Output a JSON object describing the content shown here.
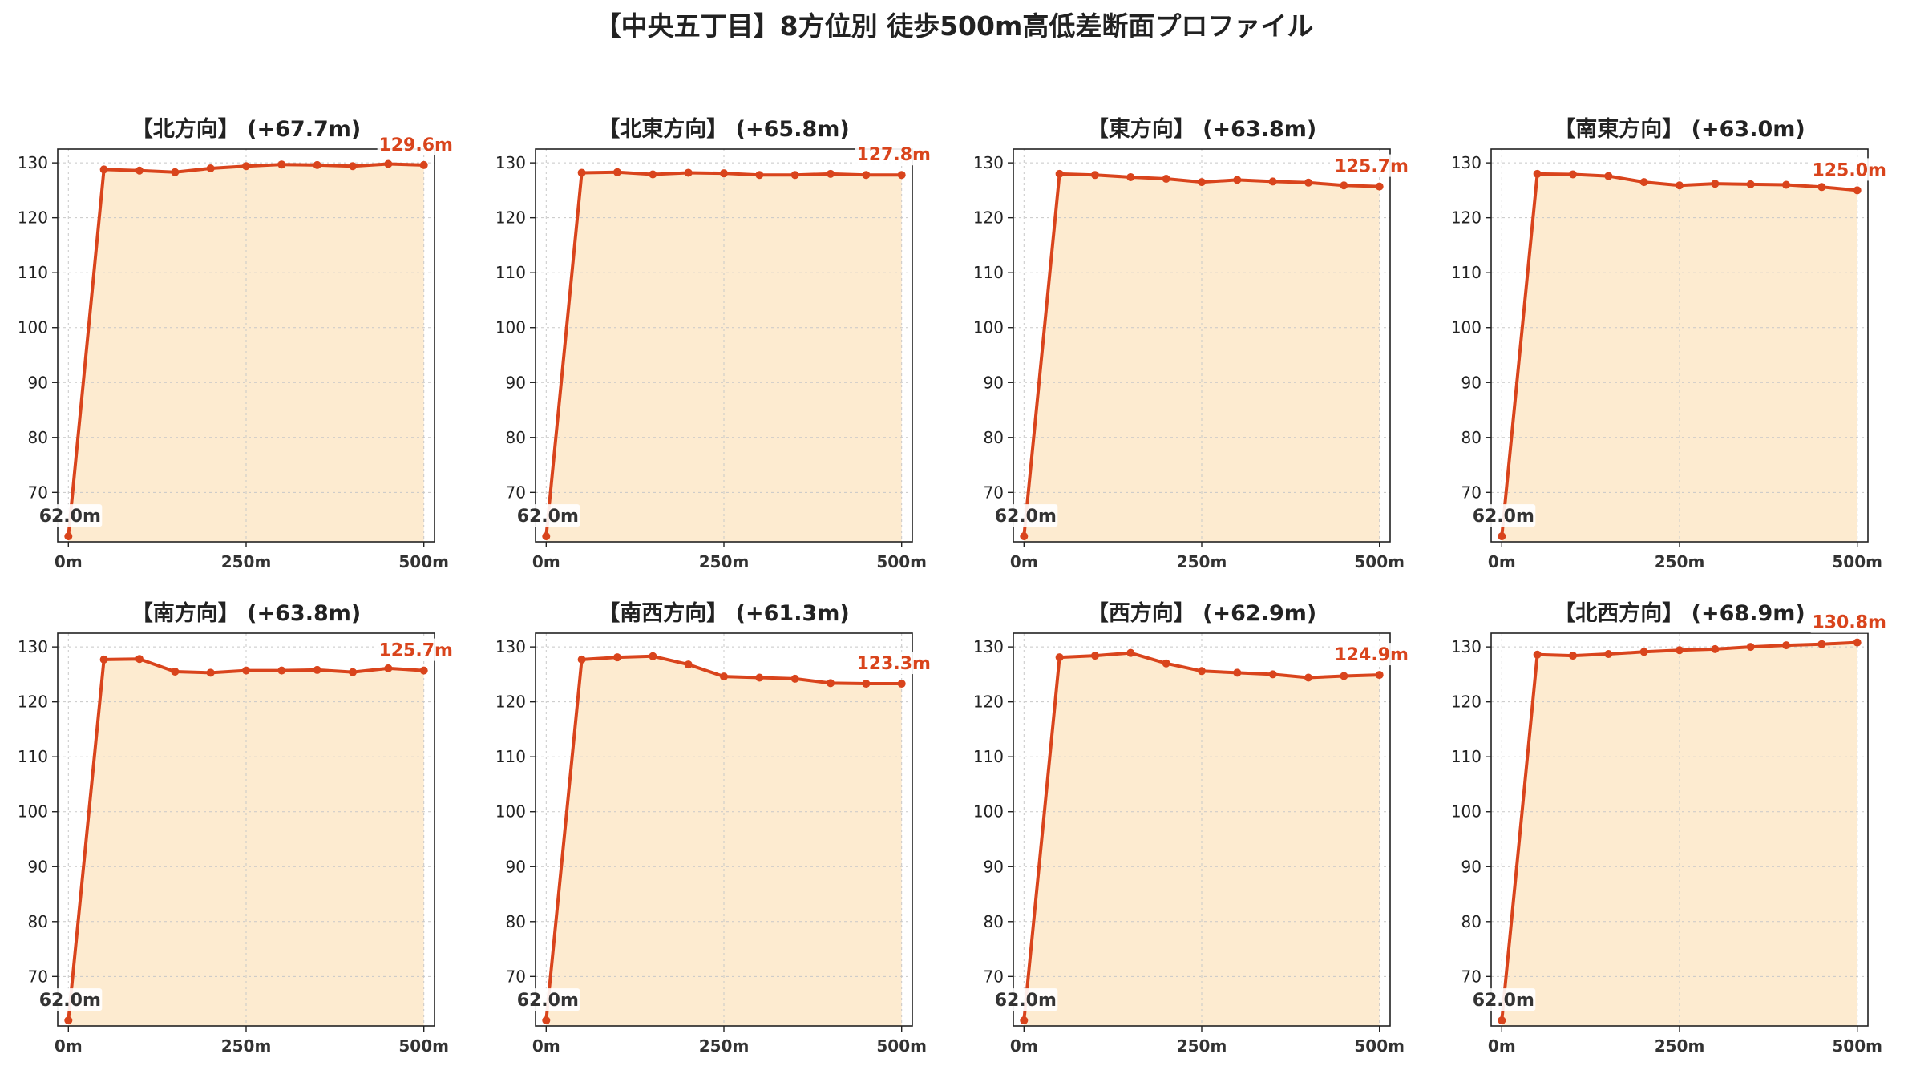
{
  "title": "【中央五丁目】8方位別 徒歩500m高低差断面プロファイル",
  "colors": {
    "line": "#d9441c",
    "fill": "#fdebd0",
    "grid": "#c8c8c8",
    "axis": "#222222"
  },
  "chart_data": [
    {
      "type": "area",
      "title": "【北方向】 (+67.7m)",
      "x": [
        0,
        50,
        100,
        150,
        200,
        250,
        300,
        350,
        400,
        450,
        500
      ],
      "y": [
        62.0,
        128.8,
        128.6,
        128.3,
        129.0,
        129.4,
        129.7,
        129.6,
        129.4,
        129.8,
        129.6
      ],
      "xticks": [
        {
          "value": 0,
          "label": "0m"
        },
        {
          "value": 250,
          "label": "250m"
        },
        {
          "value": 500,
          "label": "500m"
        }
      ],
      "yticks": [
        70,
        80,
        90,
        100,
        110,
        120,
        130
      ],
      "xlim": [
        -15,
        515
      ],
      "ylim": [
        61,
        132.5
      ],
      "start_label": "62.0m",
      "end_label": "129.6m",
      "grid": true
    },
    {
      "type": "area",
      "title": "【北東方向】 (+65.8m)",
      "x": [
        0,
        50,
        100,
        150,
        200,
        250,
        300,
        350,
        400,
        450,
        500
      ],
      "y": [
        62.0,
        128.2,
        128.3,
        127.9,
        128.2,
        128.1,
        127.8,
        127.8,
        128.0,
        127.8,
        127.8
      ],
      "xticks": [
        {
          "value": 0,
          "label": "0m"
        },
        {
          "value": 250,
          "label": "250m"
        },
        {
          "value": 500,
          "label": "500m"
        }
      ],
      "yticks": [
        70,
        80,
        90,
        100,
        110,
        120,
        130
      ],
      "xlim": [
        -15,
        515
      ],
      "ylim": [
        61,
        132.5
      ],
      "start_label": "62.0m",
      "end_label": "127.8m",
      "grid": true
    },
    {
      "type": "area",
      "title": "【東方向】 (+63.8m)",
      "x": [
        0,
        50,
        100,
        150,
        200,
        250,
        300,
        350,
        400,
        450,
        500
      ],
      "y": [
        62.0,
        128.0,
        127.8,
        127.4,
        127.1,
        126.5,
        126.9,
        126.6,
        126.4,
        125.9,
        125.7
      ],
      "xticks": [
        {
          "value": 0,
          "label": "0m"
        },
        {
          "value": 250,
          "label": "250m"
        },
        {
          "value": 500,
          "label": "500m"
        }
      ],
      "yticks": [
        70,
        80,
        90,
        100,
        110,
        120,
        130
      ],
      "xlim": [
        -15,
        515
      ],
      "ylim": [
        61,
        132.5
      ],
      "start_label": "62.0m",
      "end_label": "125.7m",
      "grid": true
    },
    {
      "type": "area",
      "title": "【南東方向】 (+63.0m)",
      "x": [
        0,
        50,
        100,
        150,
        200,
        250,
        300,
        350,
        400,
        450,
        500
      ],
      "y": [
        62.0,
        128.0,
        127.9,
        127.6,
        126.5,
        125.9,
        126.2,
        126.1,
        126.0,
        125.6,
        125.0
      ],
      "xticks": [
        {
          "value": 0,
          "label": "0m"
        },
        {
          "value": 250,
          "label": "250m"
        },
        {
          "value": 500,
          "label": "500m"
        }
      ],
      "yticks": [
        70,
        80,
        90,
        100,
        110,
        120,
        130
      ],
      "xlim": [
        -15,
        515
      ],
      "ylim": [
        61,
        132.5
      ],
      "start_label": "62.0m",
      "end_label": "125.0m",
      "grid": true
    },
    {
      "type": "area",
      "title": "【南方向】 (+63.8m)",
      "x": [
        0,
        50,
        100,
        150,
        200,
        250,
        300,
        350,
        400,
        450,
        500
      ],
      "y": [
        62.0,
        127.7,
        127.8,
        125.5,
        125.3,
        125.7,
        125.7,
        125.8,
        125.4,
        126.1,
        125.7
      ],
      "xticks": [
        {
          "value": 0,
          "label": "0m"
        },
        {
          "value": 250,
          "label": "250m"
        },
        {
          "value": 500,
          "label": "500m"
        }
      ],
      "yticks": [
        70,
        80,
        90,
        100,
        110,
        120,
        130
      ],
      "xlim": [
        -15,
        515
      ],
      "ylim": [
        61,
        132.5
      ],
      "start_label": "62.0m",
      "end_label": "125.7m",
      "grid": true
    },
    {
      "type": "area",
      "title": "【南西方向】 (+61.3m)",
      "x": [
        0,
        50,
        100,
        150,
        200,
        250,
        300,
        350,
        400,
        450,
        500
      ],
      "y": [
        62.0,
        127.7,
        128.1,
        128.3,
        126.8,
        124.6,
        124.4,
        124.2,
        123.4,
        123.3,
        123.3
      ],
      "xticks": [
        {
          "value": 0,
          "label": "0m"
        },
        {
          "value": 250,
          "label": "250m"
        },
        {
          "value": 500,
          "label": "500m"
        }
      ],
      "yticks": [
        70,
        80,
        90,
        100,
        110,
        120,
        130
      ],
      "xlim": [
        -15,
        515
      ],
      "ylim": [
        61,
        132.5
      ],
      "start_label": "62.0m",
      "end_label": "123.3m",
      "grid": true
    },
    {
      "type": "area",
      "title": "【西方向】 (+62.9m)",
      "x": [
        0,
        50,
        100,
        150,
        200,
        250,
        300,
        350,
        400,
        450,
        500
      ],
      "y": [
        62.0,
        128.1,
        128.4,
        128.9,
        127.0,
        125.6,
        125.3,
        125.0,
        124.4,
        124.7,
        124.9
      ],
      "xticks": [
        {
          "value": 0,
          "label": "0m"
        },
        {
          "value": 250,
          "label": "250m"
        },
        {
          "value": 500,
          "label": "500m"
        }
      ],
      "yticks": [
        70,
        80,
        90,
        100,
        110,
        120,
        130
      ],
      "xlim": [
        -15,
        515
      ],
      "ylim": [
        61,
        132.5
      ],
      "start_label": "62.0m",
      "end_label": "124.9m",
      "grid": true
    },
    {
      "type": "area",
      "title": "【北西方向】 (+68.9m)",
      "x": [
        0,
        50,
        100,
        150,
        200,
        250,
        300,
        350,
        400,
        450,
        500
      ],
      "y": [
        62.0,
        128.6,
        128.4,
        128.7,
        129.1,
        129.4,
        129.6,
        130.0,
        130.3,
        130.5,
        130.8
      ],
      "xticks": [
        {
          "value": 0,
          "label": "0m"
        },
        {
          "value": 250,
          "label": "250m"
        },
        {
          "value": 500,
          "label": "500m"
        }
      ],
      "yticks": [
        70,
        80,
        90,
        100,
        110,
        120,
        130
      ],
      "xlim": [
        -15,
        515
      ],
      "ylim": [
        61,
        132.5
      ],
      "start_label": "62.0m",
      "end_label": "130.8m",
      "grid": true
    }
  ]
}
